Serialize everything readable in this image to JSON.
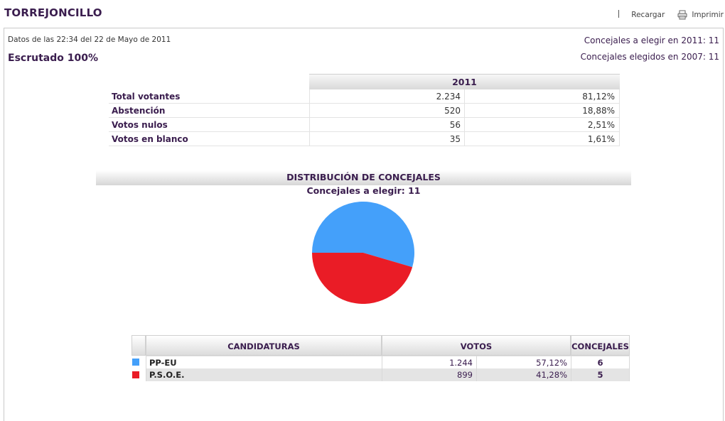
{
  "header": {
    "title": "TORREJONCILLO",
    "reload_label": "Recargar",
    "print_label": "Imprimir",
    "print_icon": "printer-icon"
  },
  "info": {
    "datos": "Datos de las 22:34  del 22 de Mayo de 2011",
    "escrutado": "Escrutado 100%",
    "concejales_a_elegir": "Concejales a elegir en 2011: 11",
    "concejales_elegidos": "Concejales elegidos en 2007: 11"
  },
  "votantes": {
    "year_header": "2011",
    "rows": [
      {
        "label": "Total votantes",
        "value": "2.234",
        "pct": "81,12%"
      },
      {
        "label": "Abstención",
        "value": "520",
        "pct": "18,88%"
      },
      {
        "label": "Votos nulos",
        "value": "56",
        "pct": "2,51%"
      },
      {
        "label": "Votos en blanco",
        "value": "35",
        "pct": "1,61%"
      }
    ]
  },
  "distribucion": {
    "title": "DISTRIBUCIÓN DE CONCEJALES",
    "subtitle": "Concejales a elegir: 11"
  },
  "chart_data": {
    "type": "pie",
    "categories": [
      "PP-EU",
      "P.S.O.E."
    ],
    "values": [
      6,
      5
    ],
    "colors": [
      "#44a0fa",
      "#ea1c26"
    ]
  },
  "candidaturas": {
    "headers": {
      "name": "CANDIDATURAS",
      "votos": "VOTOS",
      "concejales": "CONCEJALES"
    },
    "rows": [
      {
        "name": "PP-EU",
        "votos": "1.244",
        "pct": "57,12%",
        "concejales": "6",
        "color": "#44a0fa"
      },
      {
        "name": "P.S.O.E.",
        "votos": "899",
        "pct": "41,28%",
        "concejales": "5",
        "color": "#ea1c26"
      }
    ]
  }
}
